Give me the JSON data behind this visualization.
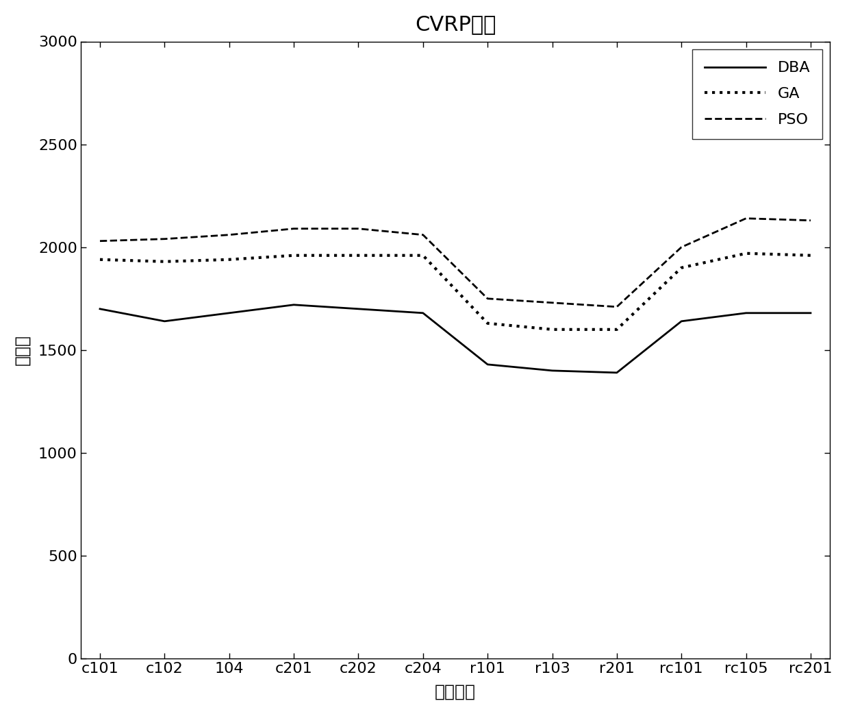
{
  "title": "CVRP问题",
  "xlabel": "测试实例",
  "ylabel": "平均値",
  "categories": [
    "c101",
    "c102",
    "104",
    "c201",
    "c202",
    "c204",
    "r101",
    "r103",
    "r201",
    "rc101",
    "rc105",
    "rc201"
  ],
  "DBA": [
    1700,
    1640,
    1680,
    1720,
    1700,
    1680,
    1430,
    1400,
    1390,
    1640,
    1680,
    1680
  ],
  "GA": [
    1940,
    1930,
    1940,
    1960,
    1960,
    1960,
    1630,
    1600,
    1600,
    1900,
    1970,
    1960
  ],
  "PSO": [
    2030,
    2040,
    2060,
    2090,
    2090,
    2060,
    1750,
    1730,
    1710,
    2000,
    2140,
    2130
  ],
  "ylim": [
    0,
    3000
  ],
  "yticks": [
    0,
    500,
    1000,
    1500,
    2000,
    2500,
    3000
  ],
  "line_color": "#000000",
  "bg_color": "#ffffff",
  "title_fontsize": 22,
  "label_fontsize": 18,
  "tick_fontsize": 16,
  "legend_fontsize": 16,
  "linewidth": 2.0
}
